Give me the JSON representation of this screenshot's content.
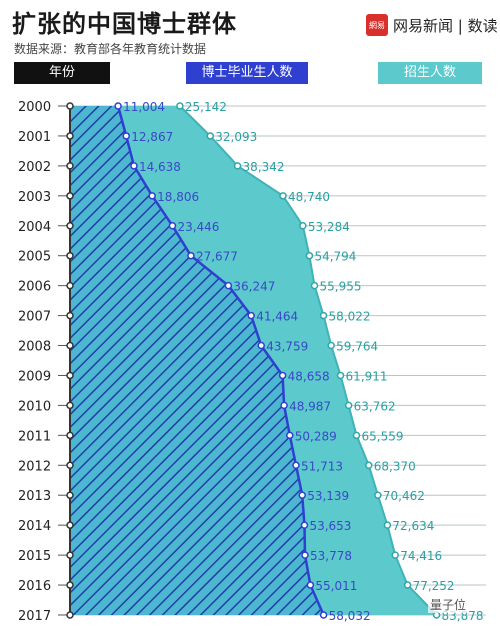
{
  "header": {
    "title": "扩张的中国博士群体",
    "source": "数据来源：教育部各年教育统计数据",
    "logo_icon_text": "網易",
    "logo_text": "网易新闻 | 数读"
  },
  "legend": {
    "year_label": "年份",
    "graduates_label": "博士毕业生人数",
    "enrollment_label": "招生人数"
  },
  "watermark": "量子位",
  "colors": {
    "graduates": "#2f3fd0",
    "enrollment": "#5cc9cc",
    "year_line": "#b8c4c8"
  },
  "chart_data": {
    "type": "area",
    "categories": [
      "2000",
      "2001",
      "2002",
      "2003",
      "2004",
      "2005",
      "2006",
      "2007",
      "2008",
      "2009",
      "2010",
      "2011",
      "2012",
      "2013",
      "2014",
      "2015",
      "2016",
      "2017"
    ],
    "series": [
      {
        "name": "博士毕业生人数",
        "values": [
          11004,
          12867,
          14638,
          18806,
          23446,
          27677,
          36247,
          41464,
          43759,
          48658,
          48987,
          50289,
          51713,
          53139,
          53653,
          53778,
          55011,
          58032
        ]
      },
      {
        "name": "招生人数",
        "values": [
          25142,
          32093,
          38342,
          48740,
          53284,
          54794,
          55955,
          58022,
          59764,
          61911,
          63762,
          65559,
          68370,
          70462,
          72634,
          74416,
          77252,
          83878
        ]
      }
    ],
    "labels": {
      "graduates": [
        "11,004",
        "12,867",
        "14,638",
        "18,806",
        "23,446",
        "27,677",
        "36,247",
        "41,464",
        "43,759",
        "48,658",
        "48,987",
        "50,289",
        "51,713",
        "53,139",
        "53,653",
        "53,778",
        "55,011",
        "58,032"
      ],
      "enrollment": [
        "25,142",
        "32,093",
        "38,342",
        "48,740",
        "53,284",
        "54,794",
        "55,955",
        "58,022",
        "59,764",
        "61,911",
        "63,762",
        "65,559",
        "68,370",
        "70,462",
        "72,634",
        "74,416",
        "77,252",
        "83,878"
      ]
    }
  }
}
